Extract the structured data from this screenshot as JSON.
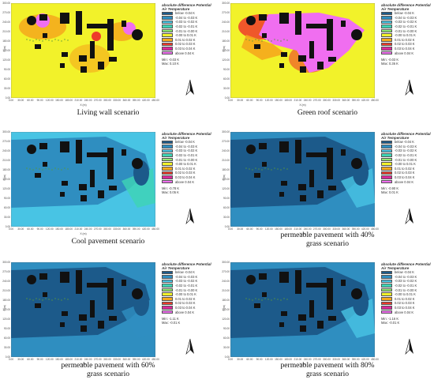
{
  "legend_title": "absolute difference Potential Air Temperature",
  "legend_labels": [
    "below -0.04 K",
    "-0.04 to -0.03 K",
    "-0.03 to -0.02 K",
    "-0.02 to -0.01 K",
    "-0.01 to -0.00 K",
    "-0.00 to 0.01 K",
    "0.01 to 0.02 K",
    "0.02 to 0.03 K",
    "0.03 to 0.04 K",
    "above 0.04 K"
  ],
  "legend_colors": [
    "#1c5a8a",
    "#2f8ec0",
    "#48c4e4",
    "#3fd4b4",
    "#8ee870",
    "#f2f22a",
    "#f5a81c",
    "#ee3c2a",
    "#d82a9a",
    "#f06ef0"
  ],
  "x_ticks": [
    "0.00",
    "30.00",
    "60.00",
    "90.00",
    "120.00",
    "150.00",
    "180.00",
    "210.00",
    "240.00",
    "270.00",
    "300.00",
    "330.00",
    "360.00",
    "390.00",
    "420.00",
    "450.00"
  ],
  "y_ticks": [
    "0.00",
    "30.00",
    "60.00",
    "90.00",
    "120.00",
    "150.00",
    "180.00",
    "210.00",
    "240.00",
    "270.00",
    "300.00"
  ],
  "x_label": "X (m)",
  "y_label": "Y (m)",
  "panels": [
    {
      "id": "living-wall",
      "caption_line1": "Living wall scenario",
      "caption_line2": "",
      "min": "Min: -0.03 K",
      "max": "Max: 0.10 K",
      "bg": "#f2f22a",
      "halo": "#f5a81c",
      "core": "#f06ef0",
      "plume": "#f2f22a"
    },
    {
      "id": "green-roof",
      "caption_line1": "Green roof scenario",
      "caption_line2": "",
      "min": "Min: -0.03 K",
      "max": "Max: 0.36 K",
      "bg": "#f2f22a",
      "halo": "#ee3c2a",
      "core": "#f06ef0",
      "plume": "#f06ef0"
    },
    {
      "id": "cool-pavement",
      "caption_line1": "Cool pavement scenario",
      "caption_line2": "",
      "min": "Min: -0.78 K",
      "max": "Max: 0.05 K",
      "bg": "#48c4e4",
      "halo": "#2f8ec0",
      "core": "#1c5a8a",
      "plume": "#3fd4b4"
    },
    {
      "id": "permeable-40",
      "caption_line1": "permeable pavement with 40%",
      "caption_line2": "grass scenario",
      "min": "Min: -0.90 K",
      "max": "Max: 0.01 K",
      "bg": "#2f8ec0",
      "halo": "#1c5a8a",
      "core": "#1c5a8a",
      "plume": "#48c4e4"
    },
    {
      "id": "permeable-60",
      "caption_line1": "permeable pavement with 60%",
      "caption_line2": "grass scenario",
      "min": "Min: -1.11 K",
      "max": "Max: -0.01 K",
      "bg": "#2f8ec0",
      "halo": "#1c5a8a",
      "core": "#1c5a8a",
      "plume": "#2f8ec0"
    },
    {
      "id": "permeable-80",
      "caption_line1": "permeable pavement with 80%",
      "caption_line2": "grass scenario",
      "min": "Min: -1.16 K",
      "max": "Max: -0.01 K",
      "bg": "#2f8ec0",
      "halo": "#1c5a8a",
      "core": "#1c5a8a",
      "plume": "#48c4e4"
    }
  ]
}
